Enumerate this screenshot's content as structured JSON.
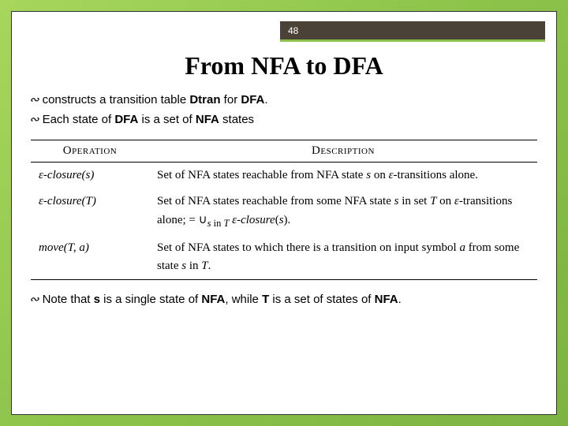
{
  "slide_number": "48",
  "title": "From NFA to DFA",
  "bullets": [
    {
      "prefix": "constructs a transition table ",
      "bold1": "Dtran",
      "mid": " for ",
      "bold2": "DFA",
      "suffix": "."
    },
    {
      "prefix": "Each state of ",
      "bold1": "DFA",
      "mid": " is a set of ",
      "bold2": "NFA",
      "suffix": " states"
    }
  ],
  "table": {
    "headers": [
      "Operation",
      "Description"
    ],
    "rows": [
      {
        "op_html": "ε-closure(s)",
        "desc_html": "Set of NFA states reachable from NFA state <i>s</i> on ε-transitions alone."
      },
      {
        "op_html": "ε-closure(T)",
        "desc_html": "Set of NFA states reachable from some NFA state <i>s</i> in set <i>T</i> on ε-transitions alone; = ∪<sub><i>s</i> in <i>T</i></sub> ε-closure(<i>s</i>)."
      },
      {
        "op_html": "move(T, a)",
        "desc_html": "Set of NFA states to which there is a transition on input symbol <i>a</i> from some state <i>s</i> in <i>T</i>."
      }
    ]
  },
  "note": {
    "prefix": "Note that ",
    "s": "s",
    "mid1": " is a single state of ",
    "nfa": "NFA",
    "mid2": ", while ",
    "t": "T",
    "mid3": " is a set of states of ",
    "nfa2": "NFA",
    "suffix": "."
  },
  "colors": {
    "header_bg": "#4a4236",
    "accent": "#8bc34a",
    "background_gradient": [
      "#a8d65c",
      "#7cb342"
    ]
  },
  "fonts": {
    "title": "Times New Roman, serif, 32pt bold",
    "body": "Arial, 15px",
    "table": "Times New Roman, serif, 15px"
  }
}
